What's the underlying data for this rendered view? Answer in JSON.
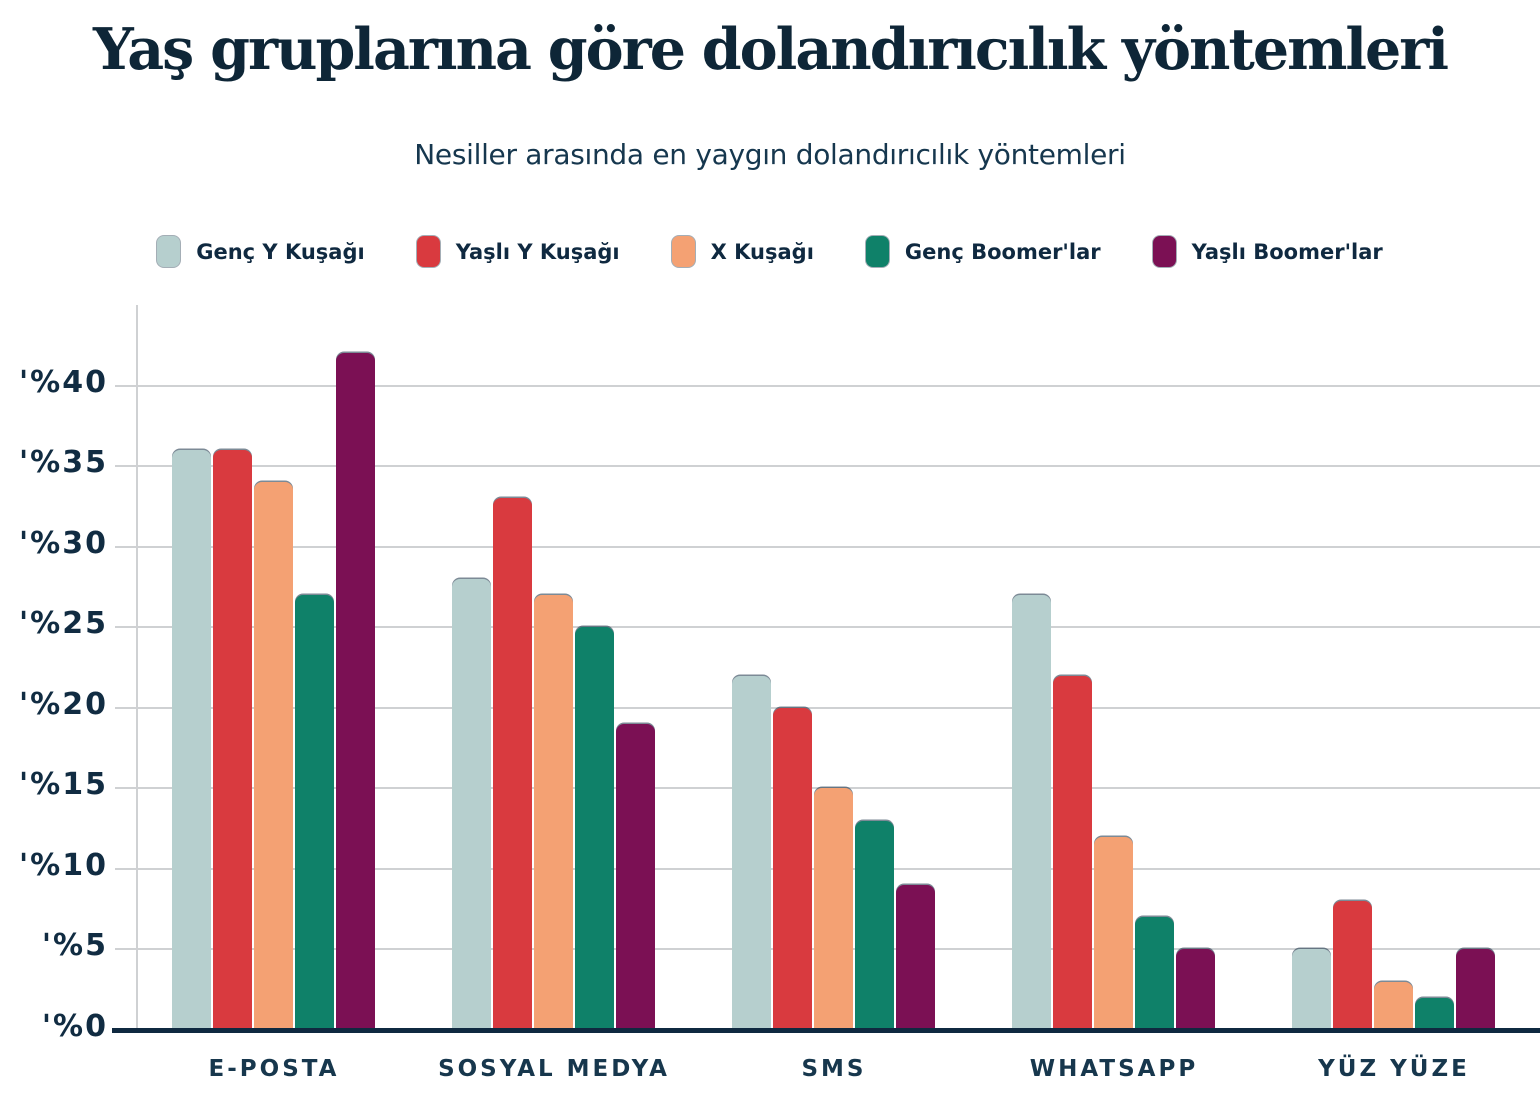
{
  "header": {
    "title": "Yaş gruplarına göre dolandırıcılık yöntemleri",
    "subtitle": "Nesiller arasında en yaygın dolandırıcılık yöntemleri"
  },
  "colors": {
    "background": "#ffffff",
    "title_navy": "#0e2637",
    "text_navy": "#112c42",
    "axis_navy": "#0f2940",
    "gridline_gray": "#cfd1d3"
  },
  "chart_data": {
    "type": "bar",
    "title": "Yaş gruplarına göre dolandırıcılık yöntemleri",
    "subtitle": "Nesiller arasında en yaygın dolandırıcılık yöntemleri",
    "categories": [
      "E-POSTA",
      "SOSYAL MEDYA",
      "SMS",
      "WHATSAPP",
      "YÜZ YÜZE"
    ],
    "series": [
      {
        "name": "Genç Y Kuşağı",
        "color": "#b6cfce",
        "values": [
          36,
          28,
          22,
          27,
          5
        ]
      },
      {
        "name": "Yaşlı Y Kuşağı",
        "color": "#d93a3f",
        "values": [
          36,
          33,
          20,
          22,
          8
        ]
      },
      {
        "name": "X Kuşağı",
        "color": "#f4a173",
        "values": [
          34,
          27,
          15,
          12,
          3
        ]
      },
      {
        "name": "Genç Boomer'lar",
        "color": "#0f8169",
        "values": [
          27,
          25,
          13,
          7,
          2
        ]
      },
      {
        "name": "Yaşlı Boomer'lar",
        "color": "#7b1054",
        "values": [
          42,
          19,
          9,
          5,
          5
        ]
      }
    ],
    "yticks": [
      "'%0",
      "'%5",
      "'%10",
      "'%15",
      "'%20",
      "'%25",
      "'%30",
      "'%35",
      "'%40"
    ],
    "ytick_values": [
      0,
      5,
      10,
      15,
      20,
      25,
      30,
      35,
      40
    ],
    "ylim": [
      0,
      45
    ],
    "xlabel": "",
    "ylabel": "",
    "grid": true,
    "legend_position": "top"
  }
}
